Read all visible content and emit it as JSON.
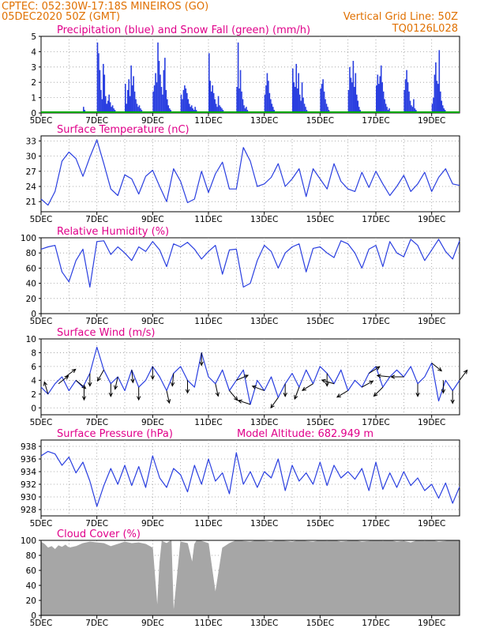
{
  "header": {
    "line1": "CPTEC:   052:30W-17:18S   MINEIROS (GO)",
    "line2": "05DEC2020 50Z (GMT)",
    "grid_note": "Vertical Grid Line: 50Z",
    "code": "TQ0126L028"
  },
  "x_axis": {
    "labels": [
      "5DEC",
      "7DEC",
      "9DEC",
      "11DEC",
      "13DEC",
      "15DEC",
      "17DEC",
      "19DEC"
    ],
    "days": 15
  },
  "colors": {
    "line": "#2a3fe0",
    "bar": "#2a3fe0",
    "snow": "#00aa00",
    "cloud": "#a6a6a6",
    "wind": "#000000",
    "grid": "#999999"
  },
  "chart_data": [
    {
      "id": "precip",
      "type": "bar",
      "title": "Precipitation (blue) and Snow Fall (green) (mm/h)",
      "ylim": [
        0,
        5
      ],
      "yticks": [
        0,
        1,
        2,
        3,
        4,
        5
      ],
      "x_hours": [
        36,
        37,
        48,
        49,
        50,
        51,
        52,
        53,
        54,
        55,
        56,
        57,
        58,
        59,
        60,
        61,
        62,
        63,
        64,
        72,
        73,
        74,
        75,
        76,
        77,
        78,
        79,
        80,
        81,
        82,
        83,
        84,
        85,
        86,
        87,
        96,
        97,
        98,
        99,
        100,
        101,
        102,
        103,
        104,
        105,
        106,
        107,
        108,
        109,
        110,
        111,
        120,
        121,
        122,
        123,
        124,
        125,
        126,
        127,
        128,
        129,
        130,
        131,
        132,
        133,
        134,
        144,
        145,
        146,
        147,
        148,
        149,
        150,
        151,
        152,
        153,
        154,
        155,
        156,
        157,
        168,
        169,
        170,
        171,
        172,
        173,
        174,
        175,
        176,
        177,
        178,
        192,
        193,
        194,
        195,
        196,
        197,
        198,
        199,
        200,
        216,
        217,
        218,
        219,
        220,
        221,
        222,
        223,
        224,
        225,
        226,
        227,
        228,
        240,
        241,
        242,
        243,
        244,
        245,
        246,
        247,
        248,
        264,
        265,
        266,
        267,
        268,
        269,
        270,
        271,
        272,
        273,
        274,
        288,
        289,
        290,
        291,
        292,
        293,
        294,
        295,
        296,
        297,
        298,
        299,
        300,
        312,
        313,
        314,
        315,
        316,
        317,
        318,
        319,
        320,
        321,
        322,
        336,
        337,
        338,
        339,
        340,
        341,
        342,
        343,
        344,
        345,
        346,
        347,
        348
      ],
      "values": [
        0.4,
        0.2,
        4.6,
        3.9,
        2.8,
        1.5,
        0.9,
        3.2,
        2.5,
        1.1,
        0.6,
        0.8,
        1.2,
        0.7,
        0.4,
        0.5,
        0.3,
        0.2,
        0.1,
        1.9,
        0.6,
        1.5,
        2.2,
        1.1,
        3.1,
        1.8,
        2.4,
        1.4,
        0.9,
        0.6,
        0.4,
        0.5,
        0.3,
        0.2,
        0.1,
        1.4,
        1.8,
        2.6,
        2.0,
        4.6,
        3.4,
        2.5,
        1.7,
        1.2,
        2.8,
        3.6,
        1.5,
        0.9,
        0.5,
        0.3,
        0.2,
        1.2,
        0.9,
        1.5,
        1.8,
        1.6,
        1.3,
        0.9,
        0.6,
        0.4,
        0.5,
        0.3,
        0.2,
        0.4,
        0.2,
        0.1,
        3.9,
        2.1,
        1.4,
        1.8,
        1.3,
        0.9,
        0.6,
        0.4,
        1.1,
        0.5,
        0.4,
        0.3,
        0.2,
        0.1,
        1.7,
        4.6,
        1.6,
        2.8,
        1.4,
        0.9,
        0.5,
        0.3,
        0.4,
        0.2,
        0.1,
        1.2,
        1.8,
        2.6,
        2.1,
        1.3,
        0.9,
        0.6,
        0.4,
        0.2,
        2.9,
        2.0,
        1.7,
        3.2,
        1.6,
        2.6,
        1.2,
        0.8,
        2.0,
        1.0,
        0.6,
        0.4,
        0.2,
        1.6,
        1.9,
        2.2,
        1.4,
        0.9,
        0.6,
        0.4,
        0.2,
        0.1,
        1.5,
        3.0,
        2.3,
        2.0,
        3.4,
        1.7,
        2.6,
        1.2,
        0.8,
        0.4,
        0.2,
        1.8,
        2.5,
        1.9,
        2.4,
        3.1,
        2.0,
        1.4,
        0.9,
        0.6,
        0.4,
        0.2,
        0.3,
        0.1,
        1.5,
        2.2,
        2.8,
        2.0,
        1.4,
        0.8,
        0.5,
        0.4,
        0.9,
        0.3,
        0.2,
        0.6,
        1.0,
        2.5,
        3.3,
        2.1,
        1.9,
        4.1,
        1.4,
        0.8,
        0.5,
        0.3,
        0.2,
        0.1
      ]
    },
    {
      "id": "temp",
      "type": "line",
      "title": "Surface Temperature (nC)",
      "ylim": [
        19,
        34
      ],
      "yticks": [
        21,
        24,
        27,
        30,
        33
      ],
      "x_hours": [
        0,
        6,
        12,
        18,
        24,
        30,
        36,
        42,
        48,
        54,
        60,
        66,
        72,
        78,
        84,
        90,
        96,
        102,
        108,
        114,
        120,
        126,
        132,
        138,
        144,
        150,
        156,
        162,
        168,
        174,
        180,
        186,
        192,
        198,
        204,
        210,
        216,
        222,
        228,
        234,
        240,
        246,
        252,
        258,
        264,
        270,
        276,
        282,
        288,
        294,
        300,
        306,
        312,
        318,
        324,
        330,
        336,
        342,
        348,
        354,
        360
      ],
      "values": [
        21.5,
        20.3,
        23.0,
        29.0,
        30.8,
        29.5,
        26.0,
        29.8,
        33.2,
        28.5,
        23.5,
        22.2,
        26.3,
        25.5,
        22.5,
        26.0,
        27.2,
        24.0,
        21.0,
        27.5,
        25.0,
        20.8,
        21.5,
        27.0,
        22.8,
        26.5,
        28.8,
        23.5,
        23.5,
        31.7,
        29.0,
        24.0,
        24.5,
        25.8,
        28.5,
        24.0,
        25.5,
        27.5,
        22.0,
        27.5,
        25.5,
        23.5,
        28.5,
        25.0,
        23.5,
        23.0,
        26.8,
        23.8,
        27.0,
        24.5,
        22.2,
        24.0,
        26.2,
        23.0,
        24.5,
        26.8,
        23.0,
        25.8,
        27.5,
        24.5,
        24.2
      ]
    },
    {
      "id": "rh",
      "type": "line",
      "title": "Relative Humidity (%)",
      "ylim": [
        0,
        100
      ],
      "yticks": [
        0,
        20,
        40,
        60,
        80,
        100
      ],
      "x_hours": [
        0,
        6,
        12,
        18,
        24,
        30,
        36,
        42,
        48,
        54,
        60,
        66,
        72,
        78,
        84,
        90,
        96,
        102,
        108,
        114,
        120,
        126,
        132,
        138,
        144,
        150,
        156,
        162,
        168,
        174,
        180,
        186,
        192,
        198,
        204,
        210,
        216,
        222,
        228,
        234,
        240,
        246,
        252,
        258,
        264,
        270,
        276,
        282,
        288,
        294,
        300,
        306,
        312,
        318,
        324,
        330,
        336,
        342,
        348,
        354,
        360
      ],
      "values": [
        85,
        88,
        90,
        55,
        42,
        70,
        85,
        35,
        95,
        96,
        78,
        88,
        80,
        70,
        88,
        82,
        95,
        84,
        62,
        92,
        88,
        94,
        85,
        72,
        82,
        90,
        52,
        84,
        85,
        35,
        40,
        70,
        90,
        82,
        60,
        80,
        88,
        92,
        55,
        86,
        88,
        80,
        74,
        96,
        92,
        80,
        60,
        85,
        90,
        62,
        95,
        80,
        75,
        98,
        90,
        70,
        84,
        98,
        82,
        72,
        96
      ]
    },
    {
      "id": "wind",
      "type": "line",
      "title": "Surface Wind (m/s)",
      "ylim": [
        -1,
        10
      ],
      "yticks": [
        0,
        2,
        4,
        6,
        8,
        10
      ],
      "x_hours": [
        0,
        6,
        12,
        18,
        24,
        30,
        36,
        42,
        48,
        54,
        60,
        66,
        72,
        78,
        84,
        90,
        96,
        102,
        108,
        114,
        120,
        126,
        132,
        138,
        144,
        150,
        156,
        162,
        168,
        174,
        180,
        186,
        192,
        198,
        204,
        210,
        216,
        222,
        228,
        234,
        240,
        246,
        252,
        258,
        264,
        270,
        276,
        282,
        288,
        294,
        300,
        306,
        312,
        318,
        324,
        330,
        336,
        342,
        348,
        354,
        360
      ],
      "values": [
        3.0,
        2.0,
        3.5,
        4.5,
        2.5,
        4.0,
        3.0,
        5.0,
        8.8,
        5.5,
        3.5,
        4.5,
        2.5,
        5.5,
        3.0,
        4.0,
        6.0,
        4.5,
        2.5,
        5.0,
        6.0,
        4.0,
        3.0,
        8.0,
        4.5,
        3.5,
        5.5,
        2.5,
        4.0,
        5.5,
        0.5,
        4.0,
        2.5,
        4.5,
        1.5,
        3.5,
        5.0,
        3.0,
        5.5,
        3.5,
        6.0,
        5.0,
        3.5,
        5.5,
        2.5,
        4.0,
        3.0,
        5.0,
        6.0,
        3.0,
        4.5,
        5.5,
        4.5,
        6.0,
        3.5,
        4.5,
        6.5,
        1.0,
        4.0,
        2.5,
        4.0
      ],
      "arrows": [
        {
          "hour": 6,
          "u": -0.3,
          "v": 1
        },
        {
          "hour": 15,
          "u": 0.5,
          "v": 0.4
        },
        {
          "hour": 21,
          "u": 0.8,
          "v": 0.6
        },
        {
          "hour": 30,
          "u": 0.6,
          "v": -0.5
        },
        {
          "hour": 37,
          "u": 0,
          "v": -1
        },
        {
          "hour": 42,
          "u": 0,
          "v": -1
        },
        {
          "hour": 54,
          "u": -0.4,
          "v": -0.7
        },
        {
          "hour": 60,
          "u": 0,
          "v": -1
        },
        {
          "hour": 66,
          "u": -0.2,
          "v": -0.9
        },
        {
          "hour": 78,
          "u": 0.1,
          "v": -1
        },
        {
          "hour": 84,
          "u": 0,
          "v": -1
        },
        {
          "hour": 96,
          "u": 0,
          "v": -1
        },
        {
          "hour": 108,
          "u": 0.2,
          "v": -0.9
        },
        {
          "hour": 114,
          "u": -0.1,
          "v": -1
        },
        {
          "hour": 126,
          "u": 0,
          "v": -1
        },
        {
          "hour": 138,
          "u": 0,
          "v": -1
        },
        {
          "hour": 150,
          "u": 0.2,
          "v": -0.9
        },
        {
          "hour": 162,
          "u": 0.5,
          "v": -0.6
        },
        {
          "hour": 168,
          "u": 0.7,
          "v": 0.3
        },
        {
          "hour": 180,
          "u": -0.6,
          "v": 0.2
        },
        {
          "hour": 192,
          "u": -0.8,
          "v": 0.3
        },
        {
          "hour": 204,
          "u": -0.5,
          "v": -0.7
        },
        {
          "hour": 210,
          "u": 0,
          "v": -1
        },
        {
          "hour": 222,
          "u": -0.3,
          "v": -0.8
        },
        {
          "hour": 234,
          "u": -0.8,
          "v": -0.5
        },
        {
          "hour": 246,
          "u": 0,
          "v": -1
        },
        {
          "hour": 252,
          "u": -1,
          "v": 0.3
        },
        {
          "hour": 264,
          "u": -1,
          "v": -0.6
        },
        {
          "hour": 276,
          "u": 0.9,
          "v": 0.5
        },
        {
          "hour": 282,
          "u": 0.8,
          "v": 0.5
        },
        {
          "hour": 294,
          "u": -0.6,
          "v": -0.6
        },
        {
          "hour": 300,
          "u": -1,
          "v": 0.1
        },
        {
          "hour": 312,
          "u": -0.8,
          "v": 0
        },
        {
          "hour": 324,
          "u": 0,
          "v": -1
        },
        {
          "hour": 336,
          "u": 0.5,
          "v": -0.4
        },
        {
          "hour": 346,
          "u": 0,
          "v": -1
        },
        {
          "hour": 354,
          "u": 0,
          "v": -1
        },
        {
          "hour": 360,
          "u": 0.6,
          "v": 0.8
        }
      ]
    },
    {
      "id": "pressure",
      "type": "line",
      "title": "Surface Pressure (hPa)",
      "annotation": "Model Altitude: 682.949  m",
      "ylim": [
        927,
        939
      ],
      "yticks": [
        928,
        930,
        932,
        934,
        936,
        938
      ],
      "x_hours": [
        0,
        6,
        12,
        18,
        24,
        30,
        36,
        42,
        48,
        54,
        60,
        66,
        72,
        78,
        84,
        90,
        96,
        102,
        108,
        114,
        120,
        126,
        132,
        138,
        144,
        150,
        156,
        162,
        168,
        174,
        180,
        186,
        192,
        198,
        204,
        210,
        216,
        222,
        228,
        234,
        240,
        246,
        252,
        258,
        264,
        270,
        276,
        282,
        288,
        294,
        300,
        306,
        312,
        318,
        324,
        330,
        336,
        342,
        348,
        354,
        360
      ],
      "values": [
        936.5,
        937.2,
        936.8,
        935.0,
        936.3,
        933.8,
        935.5,
        932.5,
        928.5,
        931.8,
        934.5,
        932.0,
        935.0,
        931.8,
        934.8,
        931.5,
        936.5,
        933.0,
        931.5,
        934.5,
        933.5,
        930.8,
        935.0,
        932.0,
        936.0,
        932.5,
        933.8,
        930.5,
        937.0,
        932.0,
        934.0,
        931.5,
        934.0,
        933.0,
        936.0,
        931.0,
        935.0,
        932.5,
        933.8,
        932.0,
        935.5,
        931.8,
        935.0,
        933.0,
        934.0,
        932.8,
        934.5,
        931.0,
        935.5,
        931.2,
        933.8,
        931.5,
        934.0,
        931.8,
        933.0,
        931.0,
        932.0,
        929.8,
        932.2,
        929.0,
        931.6
      ]
    },
    {
      "id": "cloud",
      "type": "area",
      "title": "Cloud Cover (%)",
      "ylim": [
        0,
        100
      ],
      "yticks": [
        0,
        20,
        40,
        60,
        80,
        100
      ],
      "x_hours": [
        0,
        3,
        6,
        9,
        12,
        15,
        18,
        21,
        24,
        30,
        36,
        42,
        48,
        54,
        60,
        66,
        72,
        78,
        84,
        90,
        96,
        100,
        102,
        104,
        108,
        112,
        114,
        120,
        126,
        130,
        132,
        134,
        136,
        140,
        144,
        150,
        156,
        162,
        168,
        174,
        180,
        186,
        192,
        198,
        204,
        210,
        216,
        222,
        228,
        234,
        240,
        246,
        252,
        258,
        264,
        270,
        276,
        282,
        288,
        294,
        300,
        306,
        312,
        318,
        324,
        330,
        336,
        342,
        348,
        354,
        360
      ],
      "values": [
        98,
        95,
        90,
        92,
        88,
        93,
        91,
        94,
        90,
        92,
        96,
        98,
        97,
        96,
        92,
        95,
        98,
        96,
        97,
        95,
        90,
        10,
        70,
        99,
        96,
        100,
        3,
        98,
        96,
        70,
        95,
        100,
        100,
        98,
        96,
        30,
        90,
        96,
        100,
        99,
        98,
        100,
        99,
        98,
        100,
        99,
        98,
        100,
        99,
        98,
        100,
        99,
        100,
        98,
        99,
        100,
        98,
        99,
        100,
        99,
        100,
        98,
        99,
        97,
        100,
        99,
        100,
        98,
        99,
        100,
        100
      ]
    }
  ]
}
